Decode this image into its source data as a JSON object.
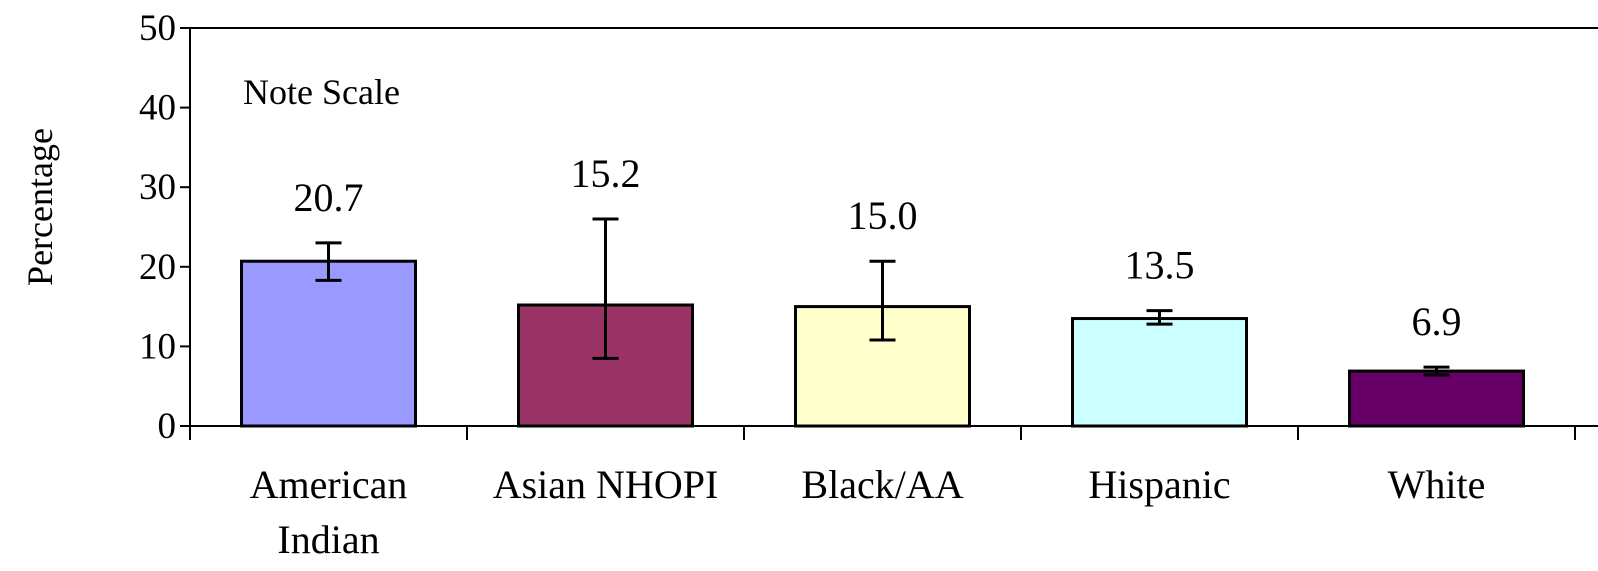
{
  "chart_data": {
    "type": "bar",
    "title": "",
    "xlabel": "",
    "ylabel": "Percentage",
    "ylim": [
      0,
      50
    ],
    "yticks": [
      0,
      10,
      20,
      30,
      40,
      50
    ],
    "grid": false,
    "legend": "none",
    "annotation": "Note Scale",
    "categories": [
      [
        "American",
        "Indian"
      ],
      [
        "Asian NHOPI"
      ],
      [
        "Black/AA"
      ],
      [
        "Hispanic"
      ],
      [
        "White"
      ]
    ],
    "values": [
      20.7,
      15.2,
      15.0,
      13.5,
      6.9
    ],
    "value_labels": [
      "20.7",
      "15.2",
      "15.0",
      "13.5",
      "6.9"
    ],
    "error_bars": [
      [
        18.3,
        23.0
      ],
      [
        8.5,
        26.0
      ],
      [
        10.8,
        20.7
      ],
      [
        12.8,
        14.5
      ],
      [
        6.4,
        7.4
      ]
    ],
    "colors": [
      "#9999FF",
      "#993366",
      "#FFFFCC",
      "#CCFFFF",
      "#660066"
    ],
    "border_color": "#000000"
  }
}
